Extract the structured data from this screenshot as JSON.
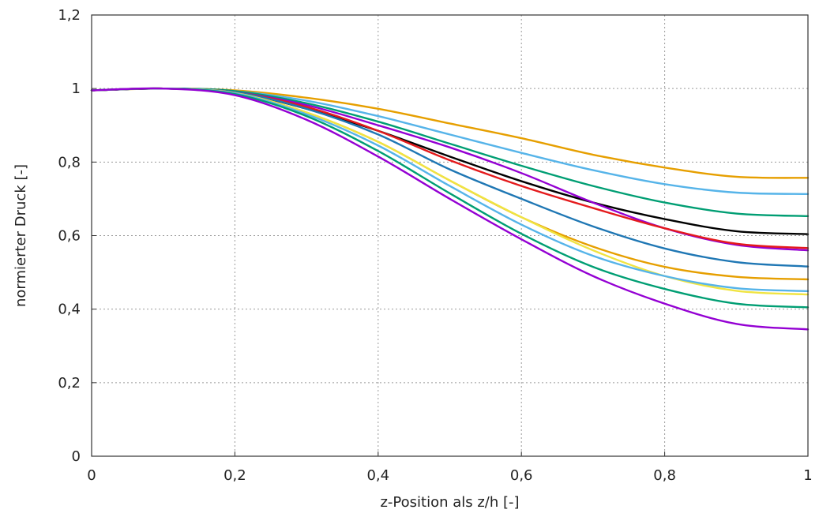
{
  "chart_data": {
    "type": "line",
    "title": "",
    "xlabel": "z-Position als z/h [-]",
    "ylabel": "normierter Druck [-]",
    "xlim": [
      0,
      1
    ],
    "ylim": [
      0,
      1.2
    ],
    "x_ticks": [
      "0",
      "0,2",
      "0,4",
      "0,6",
      "0,8",
      "1"
    ],
    "y_ticks": [
      "0",
      "0,2",
      "0,4",
      "0,6",
      "0,8",
      "1",
      "1,2"
    ],
    "grid": true,
    "legend": "none",
    "x": [
      0,
      0.1,
      0.2,
      0.3,
      0.4,
      0.5,
      0.6,
      0.7,
      0.8,
      0.9,
      1.0
    ],
    "series": [
      {
        "color": "#e69f00",
        "values": [
          0.995,
          1.0,
          0.995,
          0.975,
          0.945,
          0.905,
          0.865,
          0.82,
          0.785,
          0.76,
          0.757
        ]
      },
      {
        "color": "#56b4e9",
        "values": [
          0.995,
          1.0,
          0.993,
          0.967,
          0.925,
          0.875,
          0.825,
          0.778,
          0.74,
          0.717,
          0.713
        ]
      },
      {
        "color": "#009e73",
        "values": [
          0.995,
          1.0,
          0.993,
          0.96,
          0.91,
          0.85,
          0.79,
          0.735,
          0.69,
          0.66,
          0.653
        ]
      },
      {
        "color": "#000000",
        "values": [
          0.995,
          1.0,
          0.99,
          0.945,
          0.885,
          0.815,
          0.748,
          0.69,
          0.645,
          0.612,
          0.604
        ]
      },
      {
        "color": "#9400d3",
        "values": [
          0.995,
          1.0,
          0.99,
          0.955,
          0.9,
          0.84,
          0.77,
          0.69,
          0.62,
          0.575,
          0.56
        ]
      },
      {
        "color": "#e41a1c",
        "values": [
          0.995,
          1.0,
          0.99,
          0.95,
          0.885,
          0.805,
          0.735,
          0.675,
          0.62,
          0.578,
          0.566
        ]
      },
      {
        "color": "#1f77b4",
        "values": [
          0.995,
          1.0,
          0.99,
          0.945,
          0.875,
          0.78,
          0.7,
          0.625,
          0.565,
          0.528,
          0.516
        ]
      },
      {
        "color": "#e69f00",
        "values": [
          0.995,
          1.0,
          0.988,
          0.935,
          0.855,
          0.75,
          0.65,
          0.57,
          0.515,
          0.488,
          0.481
        ]
      },
      {
        "color": "#f0e442",
        "values": [
          0.995,
          1.0,
          0.988,
          0.935,
          0.855,
          0.75,
          0.65,
          0.56,
          0.49,
          0.45,
          0.44
        ]
      },
      {
        "color": "#56b4e9",
        "values": [
          0.995,
          1.0,
          0.987,
          0.93,
          0.845,
          0.735,
          0.63,
          0.545,
          0.49,
          0.457,
          0.449
        ]
      },
      {
        "color": "#009e73",
        "values": [
          0.995,
          1.0,
          0.985,
          0.925,
          0.83,
          0.715,
          0.605,
          0.515,
          0.455,
          0.415,
          0.405
        ]
      },
      {
        "color": "#9400d3",
        "values": [
          0.995,
          1.0,
          0.982,
          0.915,
          0.815,
          0.7,
          0.59,
          0.49,
          0.415,
          0.36,
          0.345
        ]
      }
    ]
  }
}
